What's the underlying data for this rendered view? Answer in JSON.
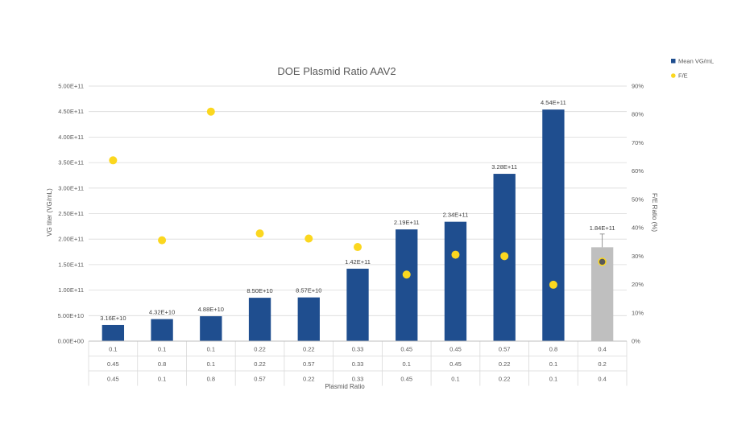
{
  "chart_data": {
    "type": "bar",
    "title": "DOE Plasmid Ratio AAV2",
    "xlabel": "Plasmid Ratio",
    "ylabel": "VG titer (VG/mL)",
    "y2label": "F/E Ratio (%)",
    "ylim": [
      0,
      500000000000.0
    ],
    "y2lim": [
      0,
      90
    ],
    "y_ticks": [
      "0.00E+00",
      "5.00E+10",
      "1.00E+11",
      "1.50E+11",
      "2.00E+11",
      "2.50E+11",
      "3.00E+11",
      "3.50E+11",
      "4.00E+11",
      "4.50E+11",
      "5.00E+11"
    ],
    "y2_ticks": [
      "0%",
      "10%",
      "20%",
      "30%",
      "40%",
      "50%",
      "60%",
      "70%",
      "80%",
      "90%"
    ],
    "grid": true,
    "legend_position": "top-right",
    "legend": [
      {
        "name": "Mean VG/mL",
        "color": "#1f4e8f"
      },
      {
        "name": "F/E",
        "color": "#fbd71f"
      }
    ],
    "categories": [
      [
        "0.1",
        "0.45",
        "0.45"
      ],
      [
        "0.1",
        "0.8",
        "0.1"
      ],
      [
        "0.1",
        "0.1",
        "0.8"
      ],
      [
        "0.22",
        "0.22",
        "0.57"
      ],
      [
        "0.22",
        "0.57",
        "0.22"
      ],
      [
        "0.33",
        "0.33",
        "0.33"
      ],
      [
        "0.45",
        "0.1",
        "0.45"
      ],
      [
        "0.45",
        "0.45",
        "0.1"
      ],
      [
        "0.57",
        "0.22",
        "0.22"
      ],
      [
        "0.8",
        "0.1",
        "0.1"
      ],
      [
        "0.4",
        "0.2",
        "0.4"
      ]
    ],
    "series": [
      {
        "name": "Mean VG/mL",
        "type": "bar",
        "values": [
          31600000000.0,
          43200000000.0,
          48800000000.0,
          85000000000.0,
          85700000000.0,
          142000000000.0,
          219000000000.0,
          234000000000.0,
          328000000000.0,
          454000000000.0,
          184000000000.0
        ],
        "labels": [
          "3.16E+10",
          "4.32E+10",
          "4.88E+10",
          "8.50E+10",
          "8.57E+10",
          "1.42E+11",
          "2.19E+11",
          "2.34E+11",
          "3.28E+11",
          "4.54E+11",
          "1.84E+11"
        ],
        "colors": [
          "#1f4e8f",
          "#1f4e8f",
          "#1f4e8f",
          "#1f4e8f",
          "#1f4e8f",
          "#1f4e8f",
          "#1f4e8f",
          "#1f4e8f",
          "#1f4e8f",
          "#1f4e8f",
          "#bfbfbf"
        ]
      },
      {
        "name": "F/E",
        "type": "scatter",
        "axis": "secondary",
        "values": [
          63.8,
          35.6,
          81.0,
          38.0,
          36.2,
          33.2,
          23.5,
          30.5,
          30.0,
          19.9,
          28.0
        ],
        "colors": [
          "#fbd71f",
          "#fbd71f",
          "#fbd71f",
          "#fbd71f",
          "#fbd71f",
          "#fbd71f",
          "#fbd71f",
          "#fbd71f",
          "#fbd71f",
          "#fbd71f",
          "#595959"
        ]
      }
    ],
    "errors": [
      0,
      0,
      0,
      0,
      0,
      0,
      0,
      0,
      0,
      0,
      26000000000.0
    ]
  }
}
